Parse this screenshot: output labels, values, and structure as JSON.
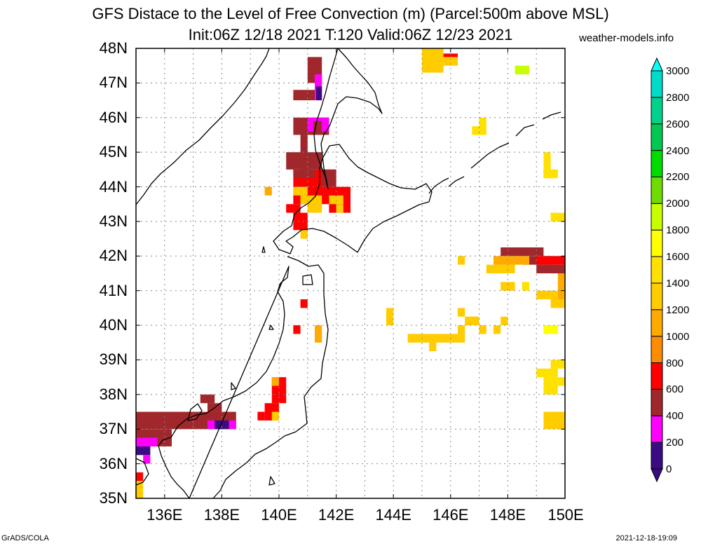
{
  "title_line1": "GFS Distace to the Level of Free Convection (m) (Parcel:500m above MSL)",
  "title_line2": "Init:06Z 12/18 2021 T:120 Valid:06Z 12/23 2021",
  "credit": "weather-models.info",
  "footer_left": "GrADS/COLA",
  "footer_right": "2021-12-18-19:09",
  "lat_labels": [
    "48N",
    "47N",
    "46N",
    "45N",
    "44N",
    "43N",
    "42N",
    "41N",
    "40N",
    "39N",
    "38N",
    "37N",
    "36N",
    "35N"
  ],
  "lon_labels": [
    "136E",
    "138E",
    "140E",
    "142E",
    "144E",
    "146E",
    "148E",
    "150E"
  ],
  "colorbar": {
    "labels": [
      "3000",
      "2800",
      "2600",
      "2400",
      "2200",
      "2000",
      "1800",
      "1600",
      "1400",
      "1200",
      "1000",
      "800",
      "600",
      "400",
      "200",
      "0"
    ],
    "colors_bottom_to_top": [
      "#3c0a82",
      "#ff00ff",
      "#a0282d",
      "#ff0000",
      "#ff8c00",
      "#ffaa00",
      "#ffcc00",
      "#ffe100",
      "#ffff00",
      "#c8ff00",
      "#6edc00",
      "#00dc00",
      "#00c850",
      "#00d28c",
      "#00dcc8",
      "#00ffff"
    ]
  },
  "map": {
    "lon_range": [
      135,
      150
    ],
    "lat_range": [
      35,
      48
    ],
    "cell_deg": 0.25,
    "colors": {
      "a": "#3c0a82",
      "b": "#ff00ff",
      "c": "#a0282d",
      "d": "#ff0000",
      "e": "#ff8c00",
      "f": "#ffaa00",
      "g": "#ffcc00",
      "h": "#ffe100",
      "i": "#ffff00",
      "j": "#c8ff00"
    },
    "blocks": [
      [
        145.0,
        47.3,
        145.75,
        48.0,
        "g"
      ],
      [
        145.75,
        47.5,
        146.25,
        47.75,
        "g"
      ],
      [
        145.75,
        47.75,
        146.25,
        47.85,
        "d"
      ],
      [
        148.25,
        47.25,
        148.75,
        47.5,
        "j"
      ],
      [
        141.0,
        47.0,
        141.5,
        47.75,
        "c"
      ],
      [
        141.25,
        46.5,
        141.5,
        47.25,
        "b"
      ],
      [
        141.3,
        46.5,
        141.5,
        46.9,
        "a"
      ],
      [
        140.5,
        46.5,
        141.25,
        46.8,
        "c"
      ],
      [
        140.5,
        45.5,
        141.75,
        46.0,
        "c"
      ],
      [
        141.0,
        45.6,
        141.75,
        46.0,
        "b"
      ],
      [
        141.2,
        45.6,
        141.5,
        45.9,
        "c"
      ],
      [
        140.75,
        44.5,
        141.0,
        45.5,
        "c"
      ],
      [
        140.25,
        44.5,
        141.5,
        45.0,
        "c"
      ],
      [
        140.5,
        43.5,
        142.0,
        44.5,
        "d"
      ],
      [
        141.5,
        44.0,
        142.0,
        44.5,
        "c"
      ],
      [
        140.5,
        44.25,
        141.25,
        44.5,
        "c"
      ],
      [
        141.75,
        43.25,
        142.5,
        44.0,
        "d"
      ],
      [
        141.75,
        43.5,
        142.25,
        43.75,
        "g"
      ],
      [
        142.0,
        43.25,
        142.25,
        43.5,
        "g"
      ],
      [
        140.75,
        43.5,
        141.5,
        43.75,
        "g"
      ],
      [
        141.0,
        43.25,
        141.5,
        43.5,
        "g"
      ],
      [
        140.5,
        43.75,
        141.0,
        44.0,
        "g"
      ],
      [
        140.25,
        43.25,
        140.75,
        43.5,
        "d"
      ],
      [
        140.5,
        42.75,
        141.0,
        43.25,
        "d"
      ],
      [
        140.75,
        42.5,
        141.0,
        42.75,
        "g"
      ],
      [
        139.5,
        43.75,
        139.75,
        44.0,
        "f"
      ],
      [
        146.75,
        45.5,
        147.25,
        45.75,
        "h"
      ],
      [
        147.0,
        45.5,
        147.25,
        46.0,
        "h"
      ],
      [
        149.25,
        44.25,
        149.5,
        45.0,
        "h"
      ],
      [
        149.25,
        44.25,
        149.75,
        44.5,
        "h"
      ],
      [
        149.5,
        43.0,
        149.75,
        43.25,
        "h"
      ],
      [
        149.5,
        43.0,
        150.0,
        43.25,
        "h"
      ],
      [
        147.75,
        42.0,
        149.25,
        42.25,
        "c"
      ],
      [
        148.5,
        41.75,
        149.5,
        42.0,
        "c"
      ],
      [
        149.0,
        41.75,
        150.0,
        42.0,
        "d"
      ],
      [
        149.0,
        41.5,
        150.0,
        41.75,
        "c"
      ],
      [
        147.5,
        41.75,
        148.75,
        42.0,
        "f"
      ],
      [
        147.25,
        41.5,
        148.25,
        41.75,
        "g"
      ],
      [
        146.25,
        41.75,
        146.5,
        42.0,
        "g"
      ],
      [
        149.75,
        40.5,
        150.0,
        41.5,
        "f"
      ],
      [
        149.5,
        40.5,
        150.0,
        40.75,
        "g"
      ],
      [
        149.0,
        40.75,
        149.75,
        41.0,
        "g"
      ],
      [
        147.75,
        41.0,
        148.25,
        41.25,
        "g"
      ],
      [
        148.5,
        41.0,
        148.75,
        41.25,
        "h"
      ],
      [
        149.25,
        39.75,
        149.75,
        40.0,
        "i"
      ],
      [
        140.75,
        40.5,
        141.0,
        40.75,
        "d"
      ],
      [
        140.5,
        39.75,
        140.75,
        40.0,
        "d"
      ],
      [
        141.25,
        39.5,
        141.5,
        40.0,
        "f"
      ],
      [
        143.75,
        40.0,
        144.0,
        40.5,
        "g"
      ],
      [
        144.5,
        39.5,
        146.5,
        39.75,
        "g"
      ],
      [
        145.25,
        39.25,
        145.5,
        39.5,
        "g"
      ],
      [
        146.25,
        39.75,
        146.5,
        40.0,
        "g"
      ],
      [
        146.25,
        40.25,
        146.5,
        40.5,
        "g"
      ],
      [
        146.5,
        40.0,
        147.0,
        40.25,
        "g"
      ],
      [
        147.0,
        39.75,
        147.25,
        40.0,
        "g"
      ],
      [
        147.5,
        39.75,
        147.75,
        40.0,
        "g"
      ],
      [
        147.75,
        40.0,
        148.0,
        40.25,
        "g"
      ],
      [
        149.0,
        38.5,
        149.75,
        38.75,
        "h"
      ],
      [
        149.5,
        38.75,
        150.0,
        39.0,
        "h"
      ],
      [
        149.25,
        38.0,
        149.75,
        38.5,
        "h"
      ],
      [
        149.75,
        38.25,
        150.0,
        38.5,
        "h"
      ],
      [
        149.25,
        37.0,
        150.0,
        37.5,
        "g"
      ],
      [
        137.25,
        37.75,
        137.75,
        38.0,
        "c"
      ],
      [
        137.5,
        37.5,
        138.0,
        37.75,
        "c"
      ],
      [
        137.0,
        37.0,
        138.5,
        37.5,
        "c"
      ],
      [
        137.5,
        37.0,
        138.0,
        37.25,
        "b"
      ],
      [
        137.75,
        37.0,
        138.25,
        37.25,
        "a"
      ],
      [
        138.25,
        37.0,
        138.5,
        37.25,
        "b"
      ],
      [
        135.0,
        37.0,
        137.0,
        37.5,
        "c"
      ],
      [
        135.0,
        36.5,
        136.25,
        37.0,
        "c"
      ],
      [
        135.0,
        36.5,
        135.75,
        36.75,
        "b"
      ],
      [
        135.0,
        36.25,
        135.5,
        36.5,
        "a"
      ],
      [
        135.25,
        36.0,
        135.5,
        36.25,
        "b"
      ],
      [
        135.0,
        35.5,
        135.25,
        35.75,
        "d"
      ],
      [
        135.0,
        35.0,
        135.25,
        35.5,
        "g"
      ],
      [
        139.75,
        37.75,
        140.25,
        38.5,
        "d"
      ],
      [
        139.5,
        37.25,
        140.0,
        37.75,
        "d"
      ],
      [
        139.25,
        37.25,
        139.5,
        37.5,
        "d"
      ],
      [
        139.75,
        38.25,
        140.0,
        38.5,
        "f"
      ],
      [
        139.75,
        37.25,
        140.0,
        37.5,
        "g"
      ]
    ]
  }
}
